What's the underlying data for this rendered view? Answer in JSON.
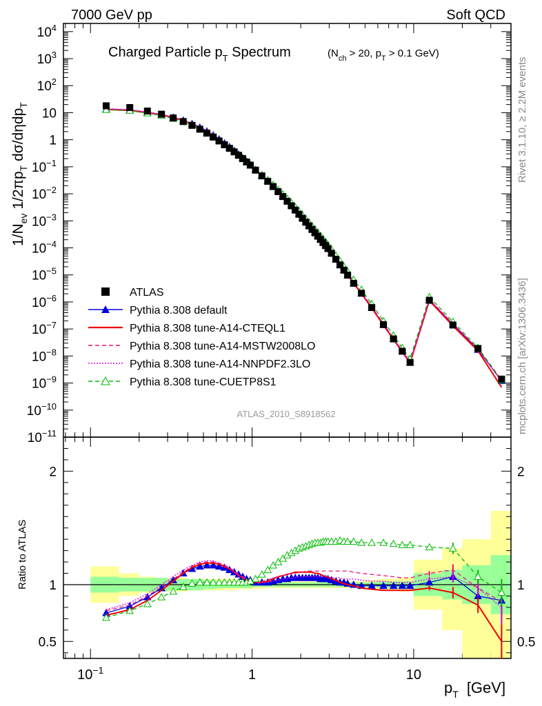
{
  "header": {
    "left": "7000 GeV pp",
    "right": "Soft QCD"
  },
  "side_labels": {
    "top": "Rivet 3.1.10, ≥ 2.2M events",
    "bottom": "mcplots.cern.ch [arXiv:1306.3436]"
  },
  "chart_data": {
    "type": "scatter",
    "title": "Charged Particle p",
    "title_sub": "T",
    "title_rest": " Spectrum",
    "title_cond": "(N",
    "title_cond_sub1": "ch",
    "title_cond_mid": " > 20, p",
    "title_cond_sub2": "T",
    "title_cond_end": " > 0.1 GeV)",
    "analysis_label": "ATLAS_2010_S8918562",
    "ylabel_main": "1/N_ev 1/2πp_T dσ/dηdp_T",
    "ylabel_ratio": "Ratio to ATLAS",
    "xlabel": "p",
    "xlabel_sub": "T",
    "xlabel_unit": "[GeV]",
    "x_scale": "log",
    "y_scale_main": "log",
    "xlim": [
      0.068,
      40
    ],
    "ylim_main": [
      1e-11,
      20000.0
    ],
    "ylim_ratio": [
      0.35,
      2.3
    ],
    "x_ticks": [
      {
        "v": 0.1,
        "base": "10",
        "exp": "−1"
      },
      {
        "v": 1,
        "label": "1"
      },
      {
        "v": 10,
        "label": "10"
      }
    ],
    "y_ticks_main": [
      {
        "v": 10000.0,
        "base": "10",
        "exp": "4"
      },
      {
        "v": 1000.0,
        "base": "10",
        "exp": "3"
      },
      {
        "v": 100.0,
        "base": "10",
        "exp": "2"
      },
      {
        "v": 10,
        "label": "10"
      },
      {
        "v": 1,
        "label": "1"
      },
      {
        "v": 0.1,
        "base": "10",
        "exp": "−1"
      },
      {
        "v": 0.01,
        "base": "10",
        "exp": "−2"
      },
      {
        "v": 0.001,
        "base": "10",
        "exp": "−3"
      },
      {
        "v": 0.0001,
        "base": "10",
        "exp": "−4"
      },
      {
        "v": 1e-05,
        "base": "10",
        "exp": "−5"
      },
      {
        "v": 1e-06,
        "base": "10",
        "exp": "−6"
      },
      {
        "v": 1e-07,
        "base": "10",
        "exp": "−7"
      },
      {
        "v": 1e-08,
        "base": "10",
        "exp": "−8"
      },
      {
        "v": 1e-09,
        "base": "10",
        "exp": "−9"
      },
      {
        "v": 1e-10,
        "base": "10",
        "exp": "−10"
      },
      {
        "v": 1e-11,
        "base": "10",
        "exp": "−11"
      }
    ],
    "y_ticks_ratio": [
      {
        "v": 0.5,
        "label": "0.5"
      },
      {
        "v": 1,
        "label": "1"
      },
      {
        "v": 2,
        "label": "2"
      }
    ],
    "x": [
      0.125,
      0.175,
      0.225,
      0.275,
      0.325,
      0.375,
      0.425,
      0.475,
      0.525,
      0.575,
      0.625,
      0.675,
      0.725,
      0.775,
      0.825,
      0.875,
      0.925,
      0.975,
      1.05,
      1.15,
      1.25,
      1.35,
      1.45,
      1.55,
      1.65,
      1.75,
      1.85,
      1.95,
      2.05,
      2.15,
      2.25,
      2.35,
      2.45,
      2.55,
      2.65,
      2.75,
      2.85,
      2.95,
      3.1,
      3.3,
      3.5,
      3.7,
      3.9,
      4.25,
      4.75,
      5.5,
      6.5,
      7.5,
      8.5,
      9.5,
      12.5,
      17.5,
      25,
      35
    ],
    "ref_values": [
      18,
      15.5,
      11.5,
      8.8,
      6.4,
      4.7,
      3.4,
      2.45,
      1.75,
      1.25,
      0.9,
      0.65,
      0.48,
      0.355,
      0.265,
      0.2,
      0.15,
      0.115,
      0.075,
      0.046,
      0.029,
      0.0185,
      0.012,
      0.0079,
      0.0053,
      0.0036,
      0.0025,
      0.00175,
      0.00124,
      0.00089,
      0.00065,
      0.00048,
      0.00036,
      0.00027,
      0.000205,
      0.000157,
      0.000121,
      9.4e-05,
      6.3e-05,
      3.8e-05,
      2.35e-05,
      1.5e-05,
      9.8e-06,
      4.9e-06,
      2.1e-06,
      6.2e-07,
      1.45e-07,
      4.3e-08,
      1.5e-08,
      5.8e-09,
      1.15e-06,
      1.4e-07,
      1.9e-08,
      1.4e-09
    ],
    "ref_x_override_note": "",
    "band_edges": [
      0.1,
      0.15,
      0.2,
      0.25,
      0.3,
      0.4,
      0.5,
      0.6,
      0.8,
      1.0,
      1.2,
      1.5,
      2.0,
      2.5,
      3.0,
      4.0,
      5.0,
      6.0,
      8.0,
      10.0,
      15.0,
      20.0,
      30.0,
      40.0
    ],
    "band_stat": [
      0.07,
      0.06,
      0.06,
      0.06,
      0.05,
      0.05,
      0.04,
      0.03,
      0.03,
      0.02,
      0.02,
      0.02,
      0.02,
      0.02,
      0.02,
      0.02,
      0.02,
      0.03,
      0.03,
      0.1,
      0.13,
      0.17,
      0.26
    ],
    "band_tot": [
      0.16,
      0.1,
      0.07,
      0.06,
      0.06,
      0.05,
      0.05,
      0.05,
      0.04,
      0.04,
      0.03,
      0.03,
      0.03,
      0.03,
      0.03,
      0.03,
      0.04,
      0.05,
      0.06,
      0.22,
      0.32,
      0.4,
      0.65
    ],
    "band_tot_low": [
      0.16,
      0.1,
      0.07,
      0.06,
      0.06,
      0.05,
      0.05,
      0.05,
      0.04,
      0.04,
      0.03,
      0.03,
      0.03,
      0.03,
      0.03,
      0.03,
      0.04,
      0.05,
      0.06,
      0.22,
      0.4,
      0.65,
      0.78
    ],
    "colors": {
      "stat_band": "#99ff99",
      "tot_band": "#ffff99",
      "ref": "#000000"
    },
    "legend_position": "lower-left",
    "series": [
      {
        "name": "ATLAS",
        "color": "#000000",
        "marker": "square",
        "line": "none",
        "ratio": []
      },
      {
        "name": "Pythia 8.308 default",
        "color": "#0000dd",
        "marker": "triangle",
        "line": "solid",
        "main_scale": 0.78,
        "ratio_x": [
          0.125,
          0.175,
          0.225,
          0.275,
          0.325,
          0.375,
          0.425,
          0.475,
          0.525,
          0.575,
          0.625,
          0.675,
          0.725,
          0.775,
          0.825,
          0.875,
          0.925,
          0.975,
          1.05,
          1.15,
          1.25,
          1.35,
          1.45,
          1.55,
          1.65,
          1.75,
          1.85,
          1.95,
          2.05,
          2.15,
          2.25,
          2.35,
          2.45,
          2.55,
          2.65,
          2.75,
          2.85,
          2.95,
          3.1,
          3.3,
          3.5,
          3.7,
          3.9,
          4.25,
          4.75,
          5.5,
          6.5,
          7.5,
          8.5,
          9.5,
          12.5,
          17.5,
          25,
          35
        ],
        "ratio": [
          0.75,
          0.81,
          0.89,
          0.97,
          1.04,
          1.1,
          1.14,
          1.16,
          1.17,
          1.17,
          1.16,
          1.15,
          1.13,
          1.11,
          1.09,
          1.07,
          1.05,
          1.04,
          1.02,
          1.02,
          1.02,
          1.03,
          1.04,
          1.05,
          1.05,
          1.06,
          1.06,
          1.06,
          1.06,
          1.06,
          1.06,
          1.06,
          1.06,
          1.06,
          1.05,
          1.05,
          1.05,
          1.05,
          1.04,
          1.03,
          1.02,
          1.02,
          1.01,
          1.0,
          0.99,
          0.99,
          0.99,
          0.99,
          0.99,
          0.99,
          1.02,
          1.07,
          0.9,
          0.86
        ],
        "ratio_err": [
          0,
          0,
          0,
          0,
          0,
          0,
          0,
          0,
          0,
          0,
          0,
          0,
          0,
          0,
          0,
          0,
          0,
          0,
          0,
          0,
          0,
          0,
          0,
          0,
          0,
          0,
          0,
          0,
          0,
          0,
          0,
          0,
          0,
          0,
          0,
          0,
          0,
          0,
          0,
          0,
          0,
          0,
          0,
          0,
          0,
          0,
          0,
          0,
          0,
          0,
          0.02,
          0.05,
          0.06,
          0.13
        ]
      },
      {
        "name": "Pythia 8.308 tune-A14-CTEQL1",
        "color": "#ee0000",
        "marker": "none",
        "line": "solid",
        "main_scale": 0.78,
        "ratio_x": [
          0.125,
          0.175,
          0.225,
          0.275,
          0.325,
          0.375,
          0.425,
          0.475,
          0.525,
          0.575,
          0.625,
          0.675,
          0.725,
          0.775,
          0.825,
          0.875,
          0.925,
          0.975,
          1.05,
          1.15,
          1.25,
          1.35,
          1.45,
          1.55,
          1.65,
          1.75,
          1.85,
          1.95,
          2.05,
          2.15,
          2.25,
          2.35,
          2.45,
          2.55,
          2.65,
          2.75,
          2.85,
          2.95,
          3.1,
          3.3,
          3.5,
          3.7,
          3.9,
          4.25,
          4.75,
          5.5,
          6.5,
          7.5,
          8.5,
          9.5,
          12.5,
          17.5,
          25,
          35
        ],
        "ratio": [
          0.73,
          0.78,
          0.86,
          0.95,
          1.03,
          1.1,
          1.15,
          1.18,
          1.19,
          1.19,
          1.18,
          1.16,
          1.14,
          1.11,
          1.08,
          1.06,
          1.04,
          1.03,
          1.02,
          1.02,
          1.03,
          1.05,
          1.07,
          1.08,
          1.09,
          1.1,
          1.11,
          1.11,
          1.11,
          1.11,
          1.11,
          1.11,
          1.1,
          1.1,
          1.09,
          1.08,
          1.07,
          1.07,
          1.05,
          1.04,
          1.02,
          1.01,
          1.0,
          0.99,
          0.97,
          0.96,
          0.95,
          0.95,
          0.95,
          0.95,
          0.97,
          0.93,
          0.82,
          0.5
        ],
        "ratio_err": [
          0,
          0,
          0,
          0,
          0,
          0,
          0,
          0,
          0,
          0,
          0,
          0,
          0,
          0,
          0,
          0,
          0,
          0,
          0,
          0,
          0,
          0,
          0,
          0,
          0,
          0,
          0,
          0,
          0,
          0,
          0,
          0,
          0,
          0,
          0,
          0,
          0,
          0,
          0,
          0,
          0,
          0,
          0,
          0,
          0,
          0,
          0,
          0,
          0,
          0,
          0.02,
          0.05,
          0.07,
          0.15
        ]
      },
      {
        "name": "Pythia 8.308 tune-A14-MSTW2008LO",
        "color": "#ee1177",
        "marker": "none",
        "line": "dashed",
        "main_scale": 0.8,
        "ratio_x": [
          0.125,
          0.175,
          0.225,
          0.275,
          0.325,
          0.375,
          0.425,
          0.475,
          0.525,
          0.575,
          0.625,
          0.675,
          0.725,
          0.775,
          0.825,
          0.875,
          0.925,
          0.975,
          1.05,
          1.15,
          1.25,
          1.35,
          1.45,
          1.55,
          1.65,
          1.75,
          1.85,
          1.95,
          2.05,
          2.15,
          2.25,
          2.35,
          2.45,
          2.55,
          2.65,
          2.75,
          2.85,
          2.95,
          3.1,
          3.3,
          3.5,
          3.7,
          3.9,
          4.25,
          4.75,
          5.5,
          6.5,
          7.5,
          8.5,
          9.5,
          12.5,
          17.5,
          25,
          35
        ],
        "ratio": [
          0.77,
          0.82,
          0.9,
          0.98,
          1.05,
          1.11,
          1.16,
          1.19,
          1.2,
          1.2,
          1.19,
          1.17,
          1.15,
          1.12,
          1.09,
          1.07,
          1.05,
          1.04,
          1.03,
          1.03,
          1.04,
          1.06,
          1.07,
          1.08,
          1.09,
          1.1,
          1.1,
          1.11,
          1.11,
          1.12,
          1.12,
          1.12,
          1.12,
          1.12,
          1.12,
          1.12,
          1.12,
          1.12,
          1.12,
          1.12,
          1.12,
          1.12,
          1.12,
          1.11,
          1.1,
          1.09,
          1.08,
          1.07,
          1.06,
          1.06,
          1.1,
          1.13,
          0.97,
          0.85
        ],
        "ratio_err": [
          0,
          0,
          0,
          0,
          0,
          0,
          0,
          0,
          0,
          0,
          0,
          0,
          0,
          0,
          0,
          0,
          0,
          0,
          0,
          0,
          0,
          0,
          0,
          0,
          0,
          0,
          0,
          0,
          0,
          0,
          0,
          0,
          0,
          0,
          0,
          0,
          0,
          0,
          0,
          0,
          0,
          0,
          0,
          0,
          0,
          0,
          0,
          0,
          0,
          0,
          0.02,
          0.05,
          0.07,
          0.15
        ]
      },
      {
        "name": "Pythia 8.308 tune-A14-NNPDF2.3LO",
        "color": "#dd00dd",
        "marker": "none",
        "line": "dotted",
        "main_scale": 0.8,
        "ratio_x": [
          0.125,
          0.175,
          0.225,
          0.275,
          0.325,
          0.375,
          0.425,
          0.475,
          0.525,
          0.575,
          0.625,
          0.675,
          0.725,
          0.775,
          0.825,
          0.875,
          0.925,
          0.975,
          1.05,
          1.15,
          1.25,
          1.35,
          1.45,
          1.55,
          1.65,
          1.75,
          1.85,
          1.95,
          2.05,
          2.15,
          2.25,
          2.35,
          2.45,
          2.55,
          2.65,
          2.75,
          2.85,
          2.95,
          3.1,
          3.3,
          3.5,
          3.7,
          3.9,
          4.25,
          4.75,
          5.5,
          6.5,
          7.5,
          8.5,
          9.5,
          12.5,
          17.5,
          25,
          35
        ],
        "ratio": [
          0.78,
          0.84,
          0.92,
          1.0,
          1.07,
          1.13,
          1.17,
          1.2,
          1.21,
          1.21,
          1.19,
          1.17,
          1.14,
          1.11,
          1.08,
          1.06,
          1.04,
          1.03,
          1.02,
          1.02,
          1.02,
          1.03,
          1.04,
          1.05,
          1.05,
          1.06,
          1.06,
          1.07,
          1.07,
          1.07,
          1.07,
          1.07,
          1.07,
          1.07,
          1.07,
          1.07,
          1.07,
          1.07,
          1.06,
          1.06,
          1.06,
          1.05,
          1.05,
          1.05,
          1.04,
          1.03,
          1.03,
          1.02,
          1.02,
          1.02,
          1.05,
          1.07,
          0.97,
          0.8
        ],
        "ratio_err": [
          0,
          0,
          0,
          0,
          0,
          0,
          0,
          0,
          0,
          0,
          0,
          0,
          0,
          0,
          0,
          0,
          0,
          0,
          0,
          0,
          0,
          0,
          0,
          0,
          0,
          0,
          0,
          0,
          0,
          0,
          0,
          0,
          0,
          0,
          0,
          0,
          0,
          0,
          0,
          0,
          0,
          0,
          0,
          0,
          0,
          0,
          0,
          0,
          0,
          0,
          0.02,
          0.05,
          0.07,
          0.15
        ]
      },
      {
        "name": "Pythia 8.308 tune-CUETP8S1",
        "color": "#00bb00",
        "marker": "open-triangle",
        "line": "dashed",
        "main_scale": 0.75,
        "ratio_x": [
          0.125,
          0.175,
          0.225,
          0.275,
          0.325,
          0.375,
          0.425,
          0.475,
          0.525,
          0.575,
          0.625,
          0.675,
          0.725,
          0.775,
          0.825,
          0.875,
          0.925,
          0.975,
          1.05,
          1.15,
          1.25,
          1.35,
          1.45,
          1.55,
          1.65,
          1.75,
          1.85,
          1.95,
          2.05,
          2.15,
          2.25,
          2.35,
          2.45,
          2.55,
          2.65,
          2.75,
          2.85,
          2.95,
          3.1,
          3.3,
          3.5,
          3.7,
          3.9,
          4.25,
          4.75,
          5.5,
          6.5,
          7.5,
          8.5,
          9.5,
          12.5,
          17.5,
          25,
          35
        ],
        "ratio": [
          0.71,
          0.77,
          0.83,
          0.89,
          0.94,
          0.98,
          1.01,
          1.02,
          1.02,
          1.02,
          1.02,
          1.02,
          1.02,
          1.02,
          1.02,
          1.02,
          1.02,
          1.03,
          1.05,
          1.09,
          1.13,
          1.17,
          1.2,
          1.23,
          1.26,
          1.28,
          1.3,
          1.32,
          1.33,
          1.34,
          1.35,
          1.36,
          1.37,
          1.37,
          1.37,
          1.38,
          1.38,
          1.38,
          1.38,
          1.38,
          1.39,
          1.38,
          1.38,
          1.38,
          1.37,
          1.37,
          1.37,
          1.36,
          1.35,
          1.35,
          1.33,
          1.32,
          1.07,
          0.93
        ],
        "ratio_err": [
          0,
          0,
          0,
          0,
          0,
          0,
          0,
          0,
          0,
          0,
          0,
          0,
          0,
          0,
          0,
          0,
          0,
          0,
          0,
          0,
          0,
          0,
          0,
          0,
          0,
          0,
          0,
          0,
          0,
          0,
          0,
          0,
          0,
          0,
          0,
          0,
          0,
          0,
          0,
          0,
          0,
          0,
          0,
          0,
          0,
          0,
          0,
          0,
          0,
          0,
          0.02,
          0.05,
          0.06,
          0.12
        ]
      }
    ]
  }
}
